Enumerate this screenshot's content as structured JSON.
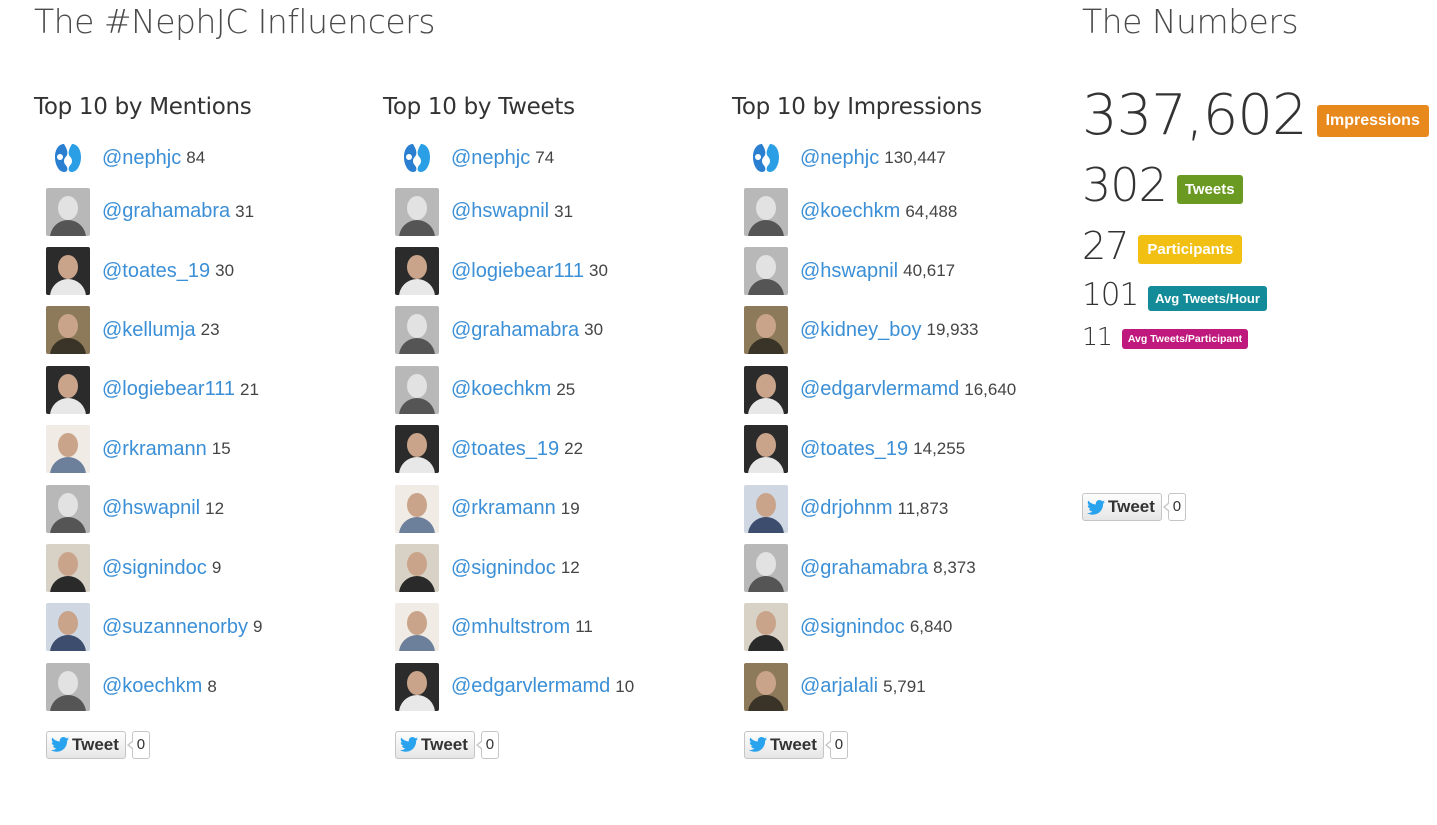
{
  "influencers_title": "The #NephJC Influencers",
  "numbers_title": "The Numbers",
  "colors": {
    "handle": "#3b8fd6",
    "impressions": "#e8891d",
    "tweets": "#6a9a22",
    "participants": "#f2c012",
    "avg_tweets_hour": "#138b98",
    "avg_tweets_participant": "#c0197e"
  },
  "columns": [
    {
      "title": "Top 10 by Mentions",
      "rows": [
        {
          "handle": "@nephjc",
          "count": "84",
          "icon": "kidney-logo-icon"
        },
        {
          "handle": "@grahamabra",
          "count": "31",
          "icon": "avatar-icon"
        },
        {
          "handle": "@toates_19",
          "count": "30",
          "icon": "avatar-icon"
        },
        {
          "handle": "@kellumja",
          "count": "23",
          "icon": "avatar-icon"
        },
        {
          "handle": "@logiebear111",
          "count": "21",
          "icon": "avatar-icon"
        },
        {
          "handle": "@rkramann",
          "count": "15",
          "icon": "avatar-icon"
        },
        {
          "handle": "@hswapnil",
          "count": "12",
          "icon": "avatar-icon"
        },
        {
          "handle": "@signindoc",
          "count": "9",
          "icon": "avatar-icon"
        },
        {
          "handle": "@suzannenorby",
          "count": "9",
          "icon": "avatar-icon"
        },
        {
          "handle": "@koechkm",
          "count": "8",
          "icon": "avatar-icon"
        }
      ],
      "tweet_label": "Tweet",
      "tweet_count": "0"
    },
    {
      "title": "Top 10 by Tweets",
      "rows": [
        {
          "handle": "@nephjc",
          "count": "74",
          "icon": "kidney-logo-icon"
        },
        {
          "handle": "@hswapnil",
          "count": "31",
          "icon": "avatar-icon"
        },
        {
          "handle": "@logiebear111",
          "count": "30",
          "icon": "avatar-icon"
        },
        {
          "handle": "@grahamabra",
          "count": "30",
          "icon": "avatar-icon"
        },
        {
          "handle": "@koechkm",
          "count": "25",
          "icon": "avatar-icon"
        },
        {
          "handle": "@toates_19",
          "count": "22",
          "icon": "avatar-icon"
        },
        {
          "handle": "@rkramann",
          "count": "19",
          "icon": "avatar-icon"
        },
        {
          "handle": "@signindoc",
          "count": "12",
          "icon": "avatar-icon"
        },
        {
          "handle": "@mhultstrom",
          "count": "11",
          "icon": "avatar-icon"
        },
        {
          "handle": "@edgarvlermamd",
          "count": "10",
          "icon": "avatar-icon"
        }
      ],
      "tweet_label": "Tweet",
      "tweet_count": "0"
    },
    {
      "title": "Top 10 by Impressions",
      "rows": [
        {
          "handle": "@nephjc",
          "count": "130,447",
          "icon": "kidney-logo-icon"
        },
        {
          "handle": "@koechkm",
          "count": "64,488",
          "icon": "avatar-icon"
        },
        {
          "handle": "@hswapnil",
          "count": "40,617",
          "icon": "avatar-icon"
        },
        {
          "handle": "@kidney_boy",
          "count": "19,933",
          "icon": "avatar-icon"
        },
        {
          "handle": "@edgarvlermamd",
          "count": "16,640",
          "icon": "avatar-icon"
        },
        {
          "handle": "@toates_19",
          "count": "14,255",
          "icon": "avatar-icon"
        },
        {
          "handle": "@drjohnm",
          "count": "11,873",
          "icon": "avatar-icon"
        },
        {
          "handle": "@grahamabra",
          "count": "8,373",
          "icon": "avatar-icon"
        },
        {
          "handle": "@signindoc",
          "count": "6,840",
          "icon": "avatar-icon"
        },
        {
          "handle": "@arjalali",
          "count": "5,791",
          "icon": "avatar-icon"
        }
      ],
      "tweet_label": "Tweet",
      "tweet_count": "0"
    }
  ],
  "numbers": {
    "impressions": {
      "value": "337,602",
      "label": "Impressions"
    },
    "tweets": {
      "value": "302",
      "label": "Tweets"
    },
    "participants": {
      "value": "27",
      "label": "Participants"
    },
    "avg_tweets_hour": {
      "value": "101",
      "label": "Avg Tweets/Hour"
    },
    "avg_tweets_participant": {
      "value": "11",
      "label": "Avg Tweets/Participant"
    },
    "tweet_label": "Tweet",
    "tweet_count": "0"
  }
}
